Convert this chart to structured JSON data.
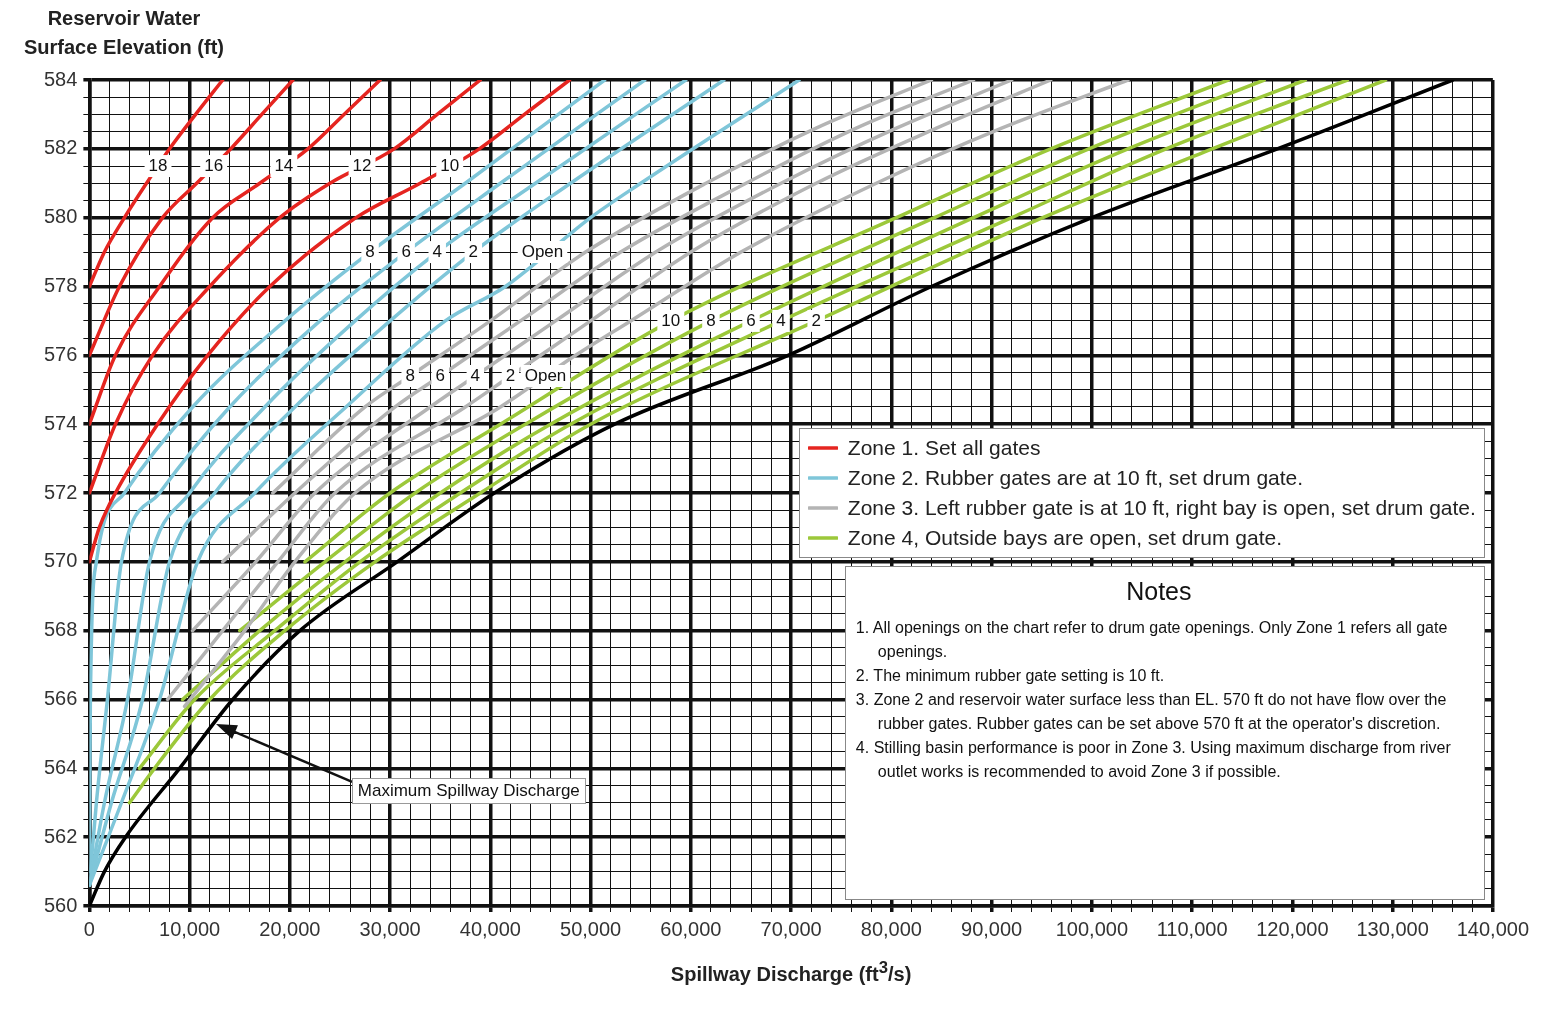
{
  "chart_data": {
    "type": "line",
    "xlabel": "Spillway Discharge (ft$^{3}$/s)",
    "ylabel": "Reservoir Water Surface Elevation (ft)",
    "xlim": [
      0,
      140000
    ],
    "ylim": [
      560,
      584
    ],
    "xticks": [
      0,
      {
        "value": 2000,
        "label": null
      },
      {
        "value": 4000,
        "label": null
      },
      {
        "value": 6000,
        "label": null
      },
      {
        "value": 8000,
        "label": null
      },
      {
        "value": 10000,
        "label": "10,000"
      },
      {
        "value": 12000,
        "label": null
      },
      {
        "value": 14000,
        "label": null
      },
      {
        "value": 16000,
        "label": null
      },
      {
        "value": 18000,
        "label": null
      },
      {
        "value": 20000,
        "label": "20,000"
      },
      {
        "value": 22000,
        "label": null
      },
      {
        "value": 24000,
        "label": null
      },
      {
        "value": 26000,
        "label": null
      },
      {
        "value": 28000,
        "label": null
      },
      {
        "value": 30000,
        "label": "30,000"
      },
      {
        "value": 32000,
        "label": null
      },
      {
        "value": 34000,
        "label": null
      },
      {
        "value": 36000,
        "label": null
      },
      {
        "value": 38000,
        "label": null
      },
      {
        "value": 40000,
        "label": "40,000"
      },
      {
        "value": 42000,
        "label": null
      },
      {
        "value": 44000,
        "label": null
      },
      {
        "value": 46000,
        "label": null
      },
      {
        "value": 48000,
        "label": null
      },
      {
        "value": 50000,
        "label": "50,000"
      },
      {
        "value": 52000,
        "label": null
      },
      {
        "value": 54000,
        "label": null
      },
      {
        "value": 56000,
        "label": null
      },
      {
        "value": 58000,
        "label": null
      },
      {
        "value": 60000,
        "label": "60,000"
      },
      {
        "value": 62000,
        "label": null
      },
      {
        "value": 64000,
        "label": null
      },
      {
        "value": 66000,
        "label": null
      },
      {
        "value": 68000,
        "label": null
      },
      {
        "value": 70000,
        "label": "70,000"
      },
      {
        "value": 72000,
        "label": null
      },
      {
        "value": 74000,
        "label": null
      },
      {
        "value": 76000,
        "label": null
      },
      {
        "value": 78000,
        "label": null
      },
      {
        "value": 80000,
        "label": "80,000"
      },
      {
        "value": 82000,
        "label": null
      },
      {
        "value": 84000,
        "label": null
      },
      {
        "value": 86000,
        "label": null
      },
      {
        "value": 88000,
        "label": null
      },
      {
        "value": 90000,
        "label": "90,000"
      },
      {
        "value": 92000,
        "label": null
      },
      {
        "value": 94000,
        "label": null
      },
      {
        "value": 96000,
        "label": null
      },
      {
        "value": 98000,
        "label": null
      },
      {
        "value": 100000,
        "label": "100,000"
      },
      {
        "value": 102000,
        "label": null
      },
      {
        "value": 104000,
        "label": null
      },
      {
        "value": 106000,
        "label": null
      },
      {
        "value": 108000,
        "label": null
      },
      {
        "value": 110000,
        "label": "110,000"
      },
      {
        "value": 112000,
        "label": null
      },
      {
        "value": 114000,
        "label": null
      },
      {
        "value": 116000,
        "label": null
      },
      {
        "value": 118000,
        "label": null
      },
      {
        "value": 120000,
        "label": "120,000"
      },
      {
        "value": 122000,
        "label": null
      },
      {
        "value": 124000,
        "label": null
      },
      {
        "value": 126000,
        "label": null
      },
      {
        "value": 128000,
        "label": null
      },
      {
        "value": 130000,
        "label": "130,000"
      },
      {
        "value": 132000,
        "label": null
      },
      {
        "value": 134000,
        "label": null
      },
      {
        "value": 136000,
        "label": null
      },
      {
        "value": 138000,
        "label": null
      },
      {
        "value": 140000,
        "label": "140,000"
      }
    ],
    "yticks": [
      560,
      {
        "value": 560.5,
        "label": null
      },
      {
        "value": 561,
        "label": null
      },
      {
        "value": 561.5,
        "label": null
      },
      562,
      {
        "value": 562.5,
        "label": null
      },
      {
        "value": 563,
        "label": null
      },
      {
        "value": 563.5,
        "label": null
      },
      564,
      {
        "value": 564.5,
        "label": null
      },
      {
        "value": 565,
        "label": null
      },
      {
        "value": 565.5,
        "label": null
      },
      566,
      {
        "value": 566.5,
        "label": null
      },
      {
        "value": 567,
        "label": null
      },
      {
        "value": 567.5,
        "label": null
      },
      568,
      {
        "value": 568.5,
        "label": null
      },
      {
        "value": 569,
        "label": null
      },
      {
        "value": 569.5,
        "label": null
      },
      570,
      {
        "value": 570.5,
        "label": null
      },
      {
        "value": 571,
        "label": null
      },
      {
        "value": 571.5,
        "label": null
      },
      572,
      {
        "value": 572.5,
        "label": null
      },
      {
        "value": 573,
        "label": null
      },
      {
        "value": 573.5,
        "label": null
      },
      574,
      {
        "value": 574.5,
        "label": null
      },
      {
        "value": 575,
        "label": null
      },
      {
        "value": 575.5,
        "label": null
      },
      576,
      {
        "value": 576.5,
        "label": null
      },
      {
        "value": 577,
        "label": null
      },
      {
        "value": 577.5,
        "label": null
      },
      578,
      {
        "value": 578.5,
        "label": null
      },
      {
        "value": 579,
        "label": null
      },
      {
        "value": 579.5,
        "label": null
      },
      580,
      {
        "value": 580.5,
        "label": null
      },
      {
        "value": 581,
        "label": null
      },
      {
        "value": 581.5,
        "label": null
      },
      582,
      {
        "value": 582.5,
        "label": null
      },
      {
        "value": 583,
        "label": null
      },
      {
        "value": 583.5,
        "label": null
      },
      584
    ],
    "grid": true,
    "legend": "right",
    "series": [
      {
        "name": "Zone 1. Set all gates",
        "color": "#e52520",
        "x": [
          0,
          1500,
          3500,
          5700,
          8000,
          10600,
          13300
        ],
        "values": [
          578,
          579,
          580,
          581,
          582,
          583,
          584
        ]
      },
      {
        "color": "#e52520",
        "x": [
          0,
          3000,
          7300,
          10700,
          14100,
          17200,
          20300
        ],
        "values": [
          576,
          578,
          580,
          581,
          582,
          583,
          584
        ]
      },
      {
        "color": "#e52520",
        "x": [
          0,
          2600,
          7000,
          12300,
          17000,
          21800,
          25400,
          29000
        ],
        "values": [
          574,
          576,
          578,
          580,
          581,
          582,
          583,
          584
        ]
      },
      {
        "color": "#e52520",
        "x": [
          0,
          2600,
          6300,
          12000,
          19000,
          24000,
          30400,
          34700,
          39000
        ],
        "values": [
          572,
          574,
          576,
          578,
          580,
          581,
          582,
          583,
          584
        ]
      },
      {
        "color": "#e52520",
        "x": [
          0,
          1000,
          2600,
          6800,
          11800,
          18000,
          26600,
          33000,
          38900,
          43400,
          47900
        ],
        "values": [
          570,
          571,
          572,
          574,
          576,
          578,
          580,
          581,
          582,
          583,
          584
        ]
      },
      {
        "name": "Zone 2. Rubber gates are at 10 ft, set drum gate.",
        "color": "#7fc6d9",
        "x": [
          0,
          100,
          700,
          3500,
          10300,
          19500,
          28000,
          37500,
          51400
        ],
        "values": [
          561,
          566,
          570,
          572,
          574.5,
          577,
          579,
          581,
          584
        ]
      },
      {
        "color": "#7fc6d9",
        "x": [
          0,
          700,
          1800,
          3200,
          7000,
          14000,
          23000,
          31600,
          41000,
          55400
        ],
        "values": [
          560.6,
          563,
          566,
          570,
          572,
          574.5,
          577,
          579,
          581,
          584
        ]
      },
      {
        "color": "#7fc6d9",
        "x": [
          0,
          1500,
          3800,
          6000,
          10000,
          17500,
          26500,
          34700,
          44500,
          59500
        ],
        "values": [
          560.6,
          563,
          566,
          570,
          572,
          574.5,
          577,
          579,
          581,
          584
        ]
      },
      {
        "color": "#7fc6d9",
        "x": [
          0,
          2200,
          5300,
          8000,
          12500,
          20500,
          30000,
          38300,
          48000,
          63300
        ],
        "values": [
          560.6,
          563,
          566,
          570,
          572,
          574.5,
          577,
          579,
          581,
          584
        ]
      },
      {
        "color": "#7fc6d9",
        "x": [
          0,
          3200,
          7000,
          10800,
          16500,
          25600,
          35500,
          41500,
          50000,
          55000,
          70800
        ],
        "values": [
          560.6,
          563,
          566,
          570,
          572,
          574.5,
          577,
          578,
          580,
          581,
          584
        ]
      },
      {
        "name": "Zone 3. Left rubber gate is at 10 ft, right bay is open, set drum gate.",
        "color": "#b4b4b4",
        "x": [
          18300,
          27500,
          32000,
          40000,
          49500,
          61500,
          72500,
          84000
        ],
        "values": [
          572,
          574.5,
          575.4,
          577,
          579,
          581,
          582.6,
          584
        ]
      },
      {
        "color": "#b4b4b4",
        "x": [
          13300,
          20500,
          30500,
          35000,
          43000,
          53000,
          65500,
          76500,
          88200
        ],
        "values": [
          570,
          572,
          574.5,
          575.4,
          577,
          579,
          581,
          582.6,
          584
        ]
      },
      {
        "color": "#b4b4b4",
        "x": [
          10300,
          16600,
          22500,
          34000,
          38500,
          46500,
          56500,
          69000,
          80500,
          92000
        ],
        "values": [
          568,
          570,
          572,
          574.5,
          575.4,
          577,
          579,
          581,
          582.6,
          584
        ]
      },
      {
        "color": "#b4b4b4",
        "x": [
          7800,
          13300,
          18800,
          24500,
          37500,
          42000,
          50000,
          60000,
          72500,
          84500,
          95900
        ],
        "values": [
          566,
          568,
          570,
          572,
          574.5,
          575.4,
          577,
          579,
          581,
          582.6,
          584
        ]
      },
      {
        "color": "#b4b4b4",
        "x": [
          9500,
          15500,
          20500,
          26500,
          41000,
          48500,
          54000,
          65000,
          78500,
          91000,
          103600
        ],
        "values": [
          565.8,
          568,
          570,
          572,
          574.5,
          576,
          577,
          579,
          581,
          582.6,
          584
        ]
      },
      {
        "name": "Zone 4, Outside bays are open, set drum gate.",
        "color": "#9cc83a",
        "x": [
          21500,
          30000,
          41000,
          58000,
          80500,
          95900,
          113600
        ],
        "values": [
          570,
          572,
          574,
          577,
          580,
          582,
          584
        ]
      },
      {
        "color": "#9cc83a",
        "x": [
          15000,
          23500,
          32500,
          43500,
          62000,
          84300,
          99700,
          117200
        ],
        "values": [
          568,
          570,
          572,
          574,
          577,
          580,
          582,
          584
        ]
      },
      {
        "color": "#9cc83a",
        "x": [
          9300,
          17000,
          25500,
          35000,
          46000,
          66000,
          88200,
          103600,
          121300
        ],
        "values": [
          566,
          568,
          570,
          572,
          574,
          577,
          580,
          582,
          584
        ]
      },
      {
        "color": "#9cc83a",
        "x": [
          5000,
          10500,
          18500,
          27000,
          37000,
          48000,
          69000,
          92000,
          107400,
          125500
        ],
        "values": [
          564,
          566,
          568,
          570,
          572,
          574,
          577,
          580,
          582,
          584
        ]
      },
      {
        "color": "#9cc83a",
        "x": [
          4000,
          6500,
          12000,
          19500,
          28500,
          39000,
          50000,
          72500,
          95100,
          112000,
          129300
        ],
        "values": [
          563,
          564,
          566,
          568,
          570,
          572,
          574,
          577,
          580,
          582,
          584
        ]
      },
      {
        "color": "#000000",
        "x": [
          0,
          1500,
          3600,
          9000,
          14300,
          21000,
          30700,
          40400,
          52400,
          69700,
          84000,
          100000,
          118500,
          136000
        ],
        "values": [
          560,
          561,
          562,
          564,
          566,
          568,
          570,
          572,
          574,
          576,
          578,
          580,
          582,
          584
        ]
      }
    ],
    "annotations": [
      {
        "text": "18",
        "x": 6850,
        "y": 581.5
      },
      {
        "text": "16",
        "x": 12400,
        "y": 581.5
      },
      {
        "text": "14",
        "x": 19400,
        "y": 581.5
      },
      {
        "text": "12",
        "x": 27200,
        "y": 581.5
      },
      {
        "text": "10",
        "x": 35950,
        "y": 581.5
      },
      {
        "text": "8",
        "x": 28000,
        "y": 579
      },
      {
        "text": "6",
        "x": 31600,
        "y": 579
      },
      {
        "text": "4",
        "x": 34700,
        "y": 579
      },
      {
        "text": "2",
        "x": 38300,
        "y": 579
      },
      {
        "text": "Open",
        "x": 45200,
        "y": 579
      },
      {
        "text": "8",
        "x": 32000,
        "y": 575.4
      },
      {
        "text": "6",
        "x": 35000,
        "y": 575.4
      },
      {
        "text": "4",
        "x": 38500,
        "y": 575.4
      },
      {
        "text": "2",
        "x": 42000,
        "y": 575.4
      },
      {
        "text": "Open",
        "x": 45500,
        "y": 575.4
      },
      {
        "text": "10",
        "x": 58000,
        "y": 577
      },
      {
        "text": "8",
        "x": 62000,
        "y": 577
      },
      {
        "text": "6",
        "x": 66000,
        "y": 577
      },
      {
        "text": "4",
        "x": 69000,
        "y": 577
      },
      {
        "text": "2",
        "x": 72500,
        "y": 577
      },
      "Maximum Spillway Discharge",
      "Notes",
      "1. All openings on the chart refer to drum gate openings. Only Zone 1 refers all gate openings.",
      "2. The minimum rubber gate setting is 10 ft.",
      "3. Zone 2 and reservoir water surface less than EL. 570 ft do not have flow over the rubber gates. Rubber gates can be set above 570 ft at the operator's discretion.",
      "4. Stilling basin performance is poor in Zone 3. Using maximum discharge from river outlet works is recommended to avoid Zone 3 if possible."
    ]
  }
}
